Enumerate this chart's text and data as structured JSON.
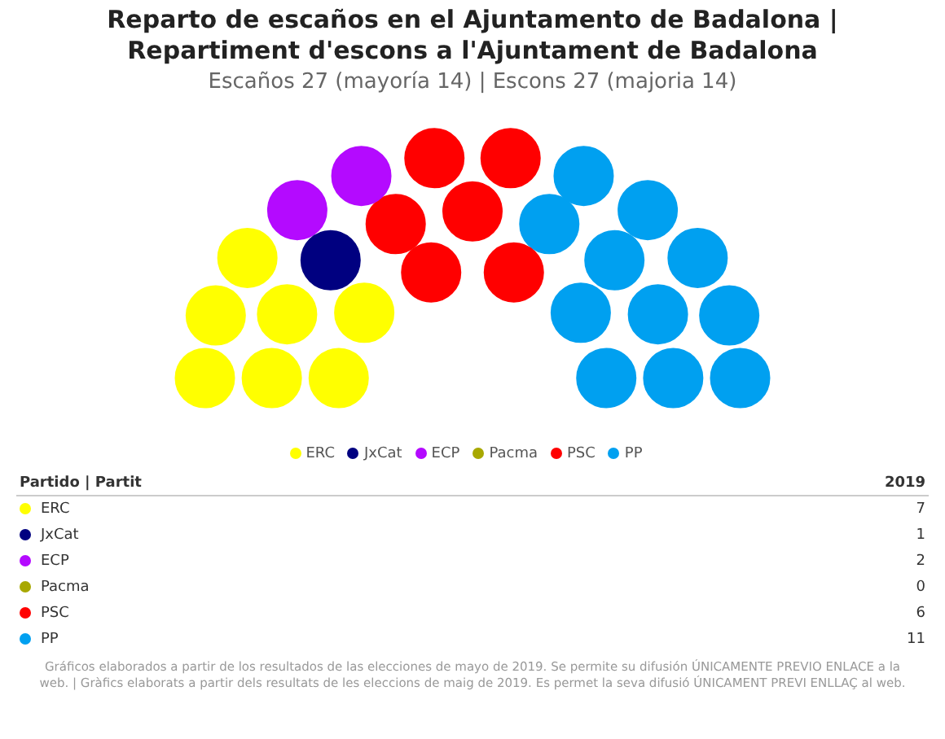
{
  "chart_data": {
    "type": "other",
    "title": "Reparto de escaños en el Ajuntamento de Badalona | Repartiment d'escons a l'Ajuntament de Badalona",
    "subtitle": "Escaños 27 (mayoría 14) | Escons 27 (majoria 14)",
    "categories": [
      "ERC",
      "JxCat",
      "ECP",
      "Pacma",
      "PSC",
      "PP"
    ],
    "colors": [
      "#ffff00",
      "#000080",
      "#b40aff",
      "#a8a800",
      "#ff0000",
      "#00a0f0"
    ],
    "series": [
      {
        "name": "2019",
        "values": [
          7,
          1,
          2,
          0,
          6,
          11
        ]
      }
    ],
    "legend_title": "Partido | Partit",
    "data_labels": true,
    "annotations": [
      "Gráficos elaborados a partir de los resultados de las elecciones de mayo de 2019. Se permite su difusión ÚNICAMENTE PREVIO ENLACE a la web. | Gràfics elaborats a partir dels resultats de les eleccions de maig de 2019. Es permet la seva difusió ÚNICAMENT PREVI ENLLAÇ al web."
    ]
  }
}
